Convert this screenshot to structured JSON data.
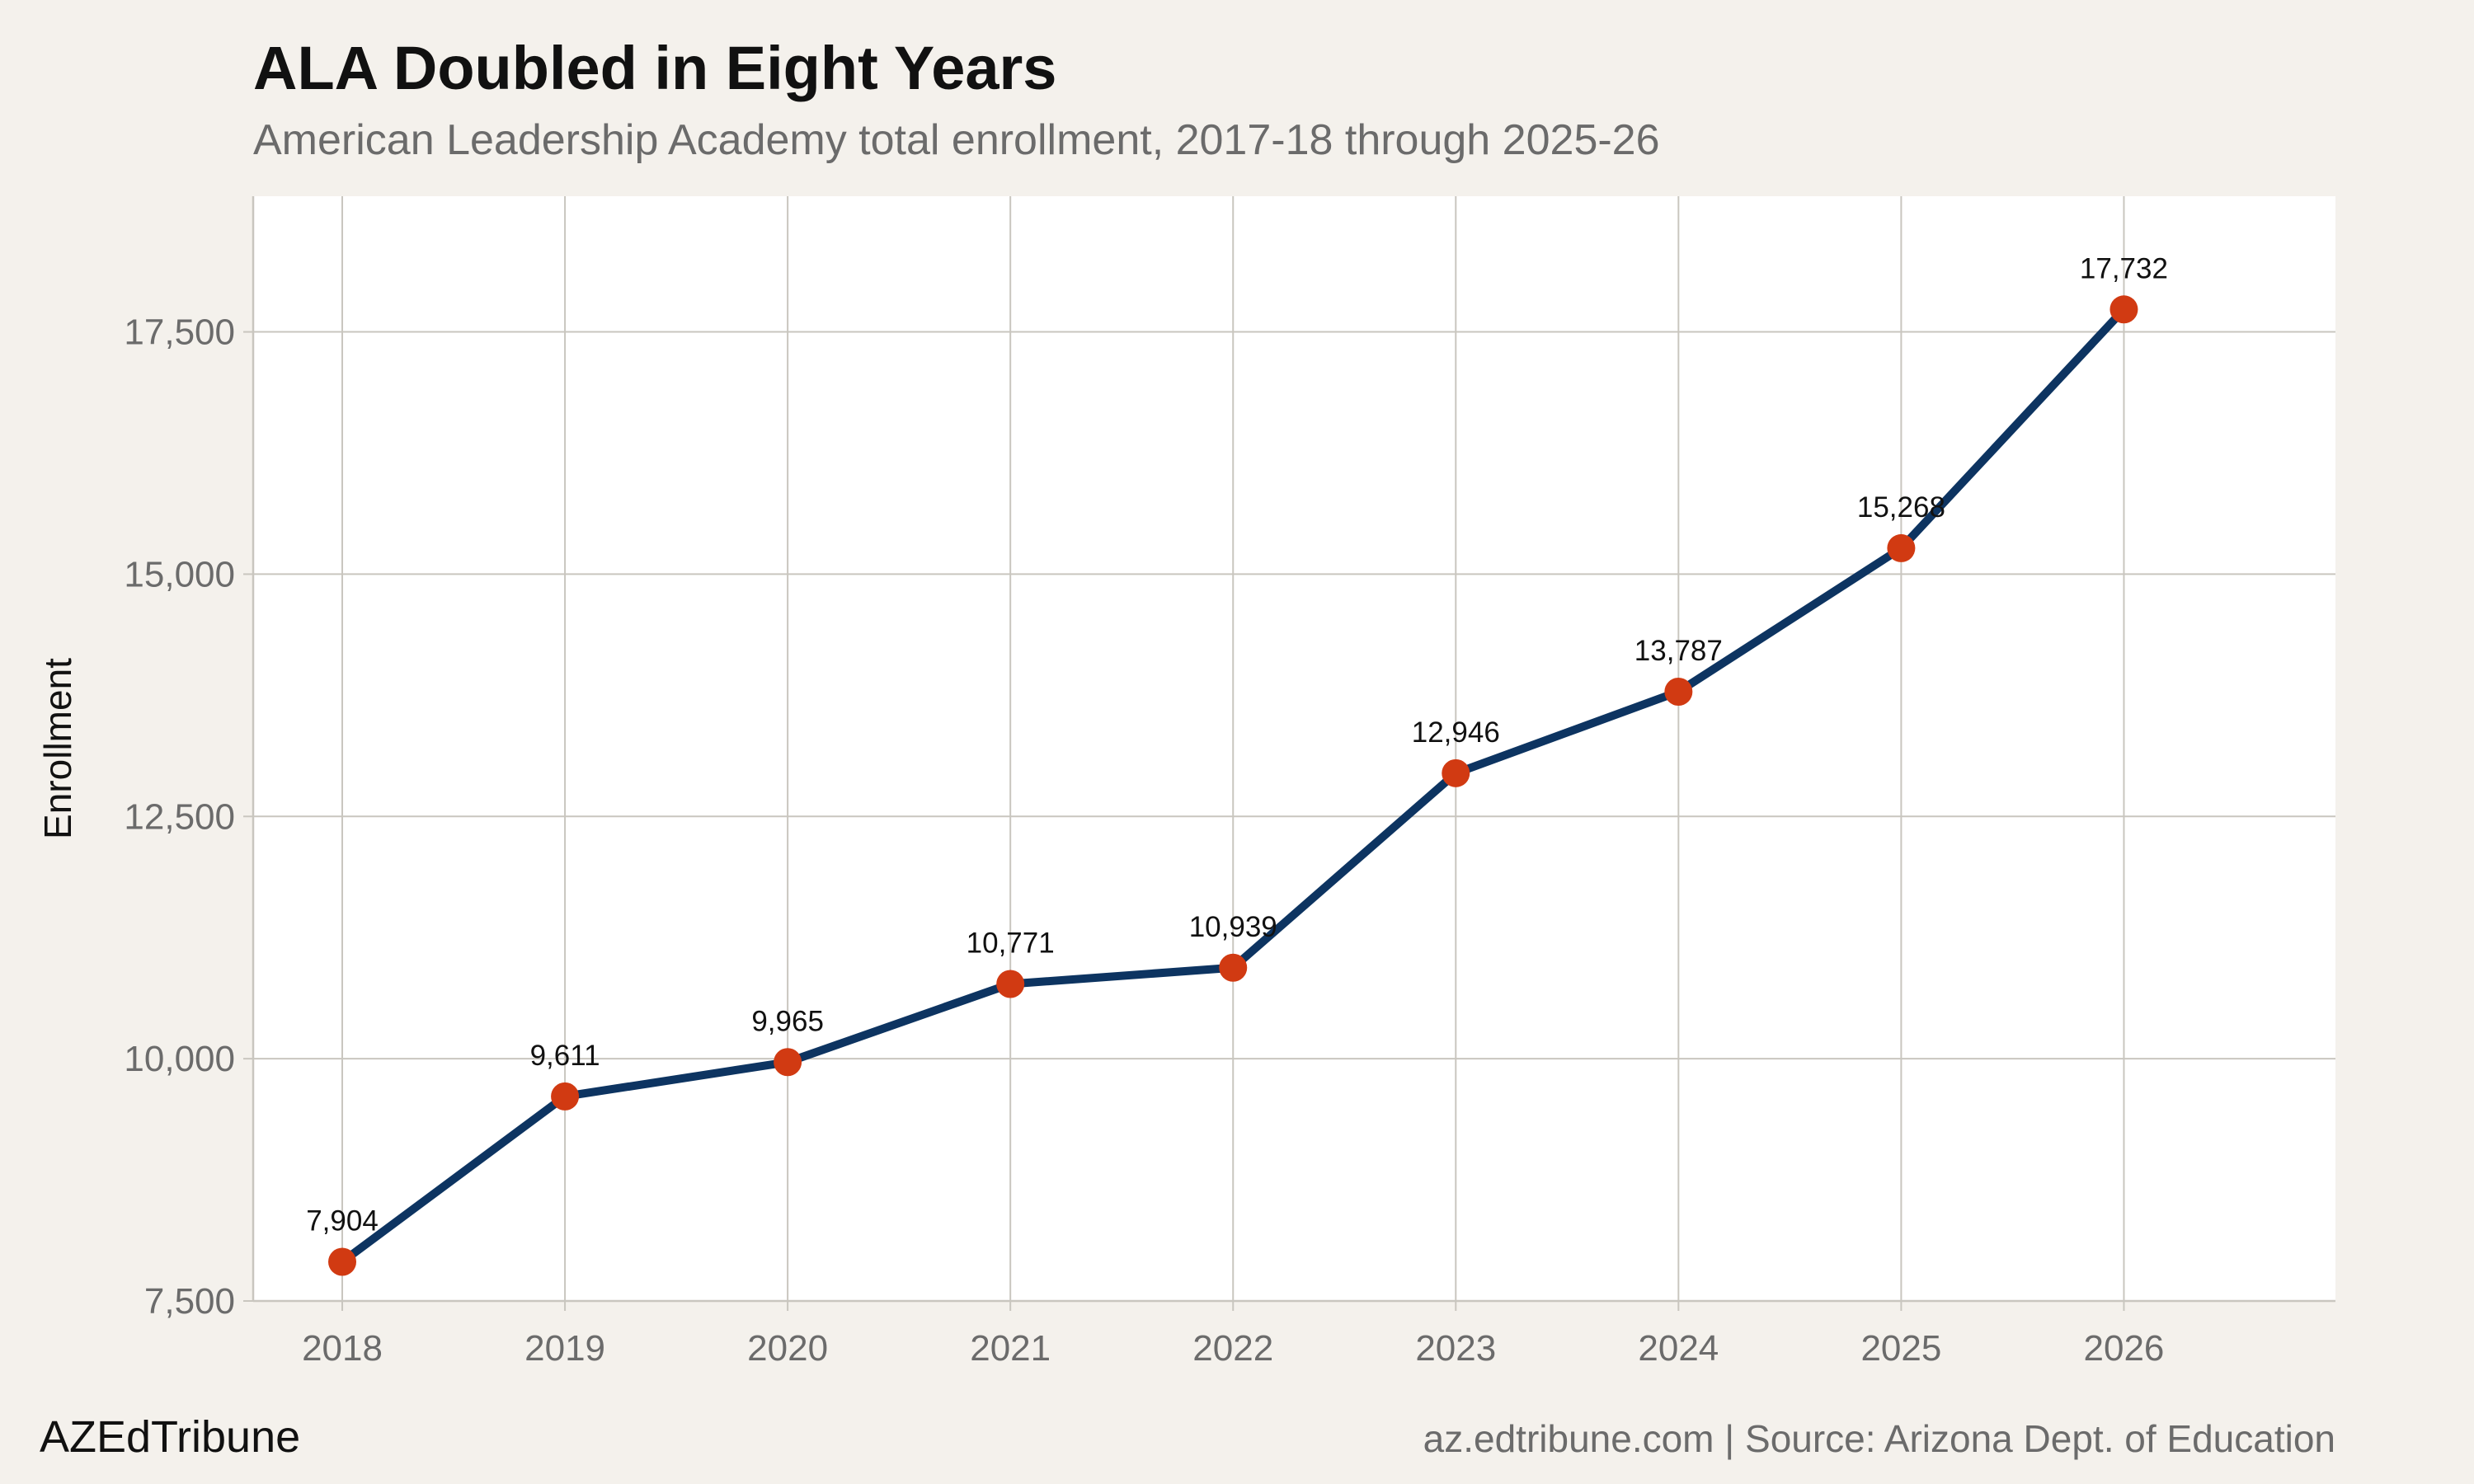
{
  "header": {
    "title": "ALA Doubled in Eight Years",
    "subtitle": "American Leadership Academy total enrollment, 2017-18 through 2025-26"
  },
  "footer": {
    "brand": "AZEdTribune",
    "source": "az.edtribune.com | Source: Arizona Dept. of Education"
  },
  "chart_data": {
    "type": "line",
    "title": "ALA Doubled in Eight Years",
    "subtitle": "American Leadership Academy total enrollment, 2017-18 through 2025-26",
    "xlabel": "",
    "ylabel": "Enrollment",
    "x": [
      2018,
      2019,
      2020,
      2021,
      2022,
      2023,
      2024,
      2025,
      2026
    ],
    "x_tick_labels": [
      "2018",
      "2019",
      "2020",
      "2021",
      "2022",
      "2023",
      "2024",
      "2025",
      "2026"
    ],
    "series": [
      {
        "values": [
          7904,
          9611,
          9965,
          10771,
          10939,
          12946,
          13787,
          15268,
          17732
        ],
        "labels": [
          "7,904",
          "9,611",
          "9,965",
          "10,771",
          "10,939",
          "12,946",
          "13,787",
          "15,268",
          "17,732"
        ]
      }
    ],
    "y_ticks": [
      7500,
      10000,
      12500,
      15000,
      17500
    ],
    "y_tick_labels": [
      "7,500",
      "10,000",
      "12,500",
      "15,000",
      "17,500"
    ],
    "xlim": [
      2017.6,
      2026.95
    ],
    "ylim": [
      7500,
      18900
    ],
    "grid": true,
    "colors": {
      "line": "#0d3461",
      "marker": "#d13a12",
      "grid": "#c9c6bf",
      "panel": "#ffffff",
      "background": "#f4f1ec"
    }
  }
}
